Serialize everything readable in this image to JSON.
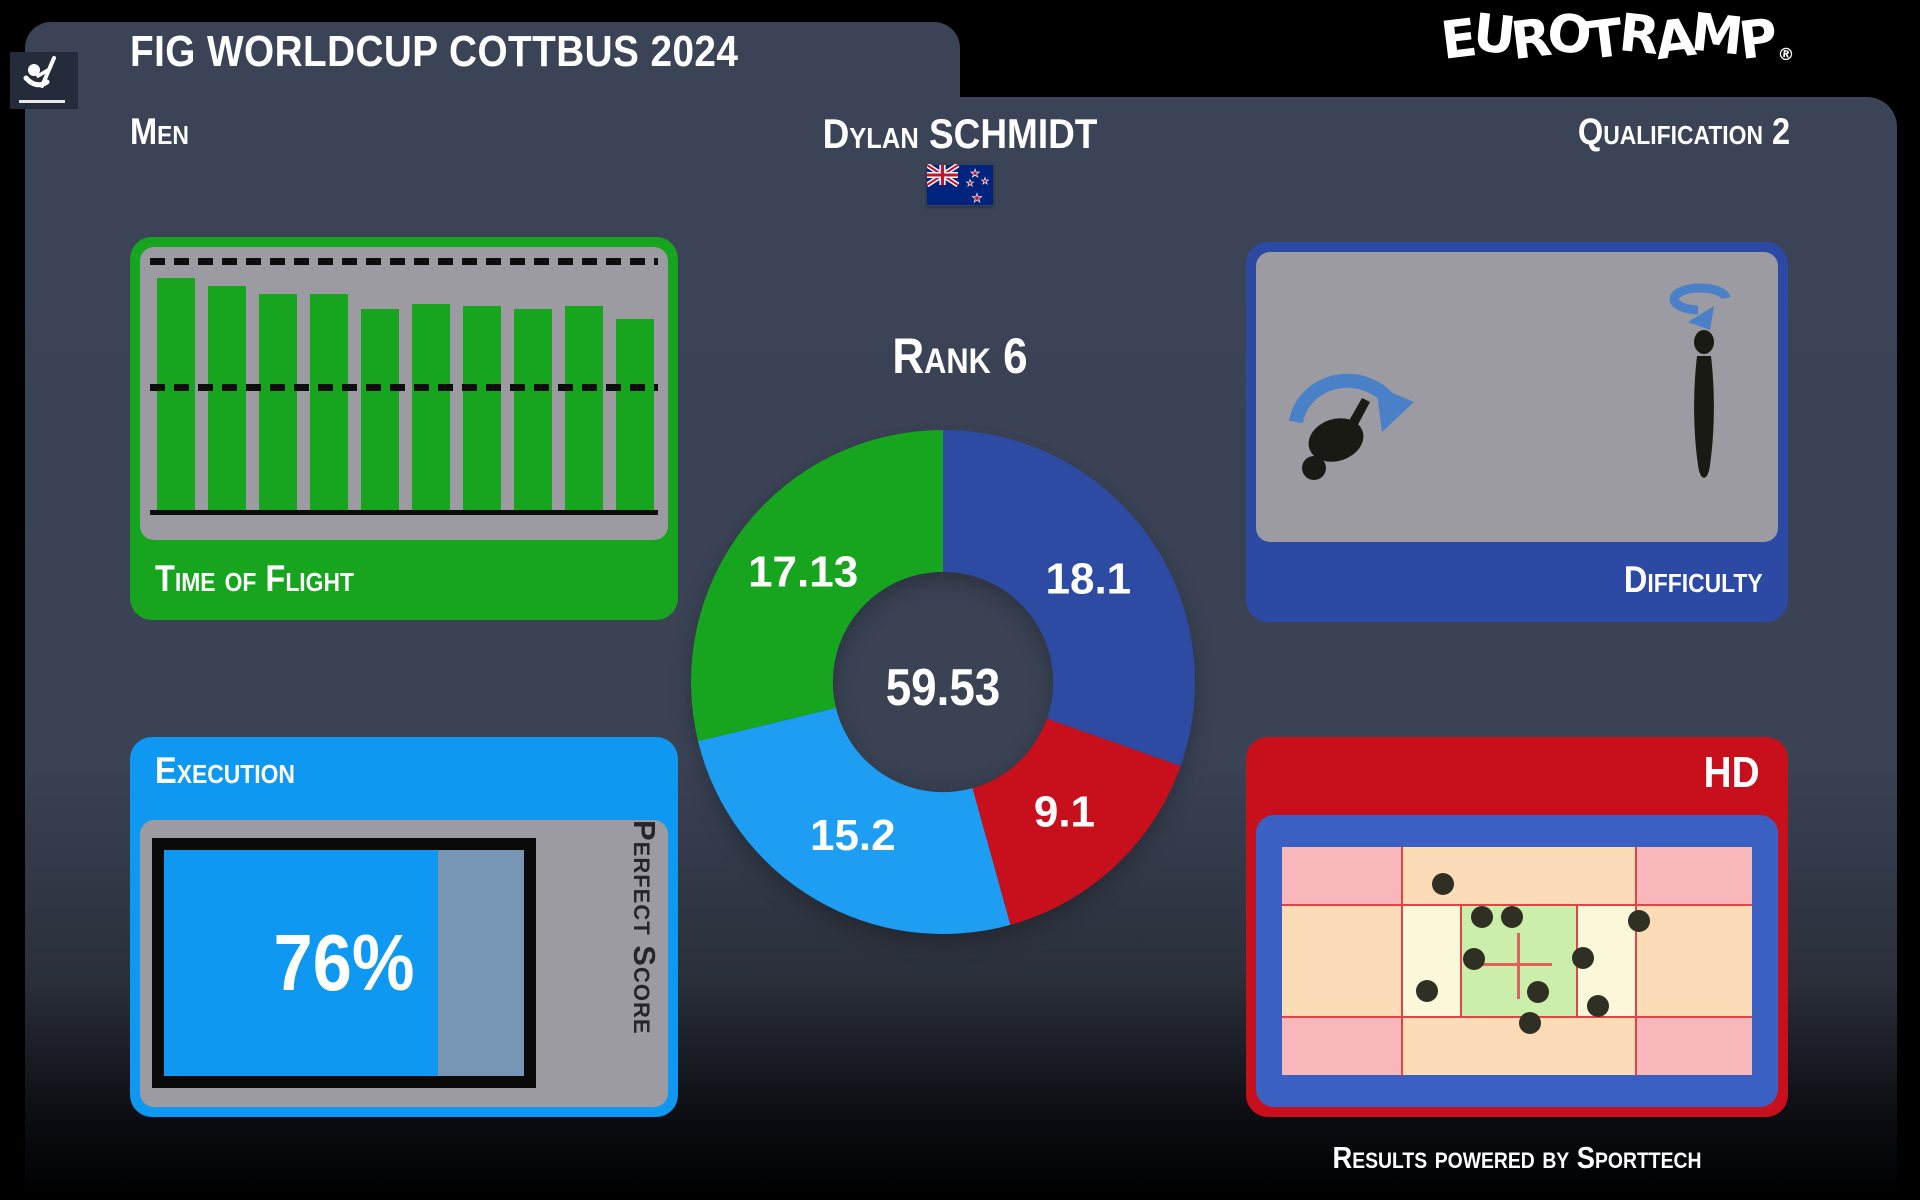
{
  "header": {
    "event_title": "FIG WORLDCUP COTTBUS 2024",
    "brand": "EUROTRAMP",
    "brand_reg": "®",
    "category": "Men",
    "athlete": "Dylan SCHMIDT",
    "athlete_nation": "new-zealand-flag",
    "round": "Qualification 2"
  },
  "rank_label": "Rank 6",
  "chart_data": [
    {
      "type": "pie",
      "title": "Rank 6",
      "center_label": "59.53",
      "direction": "clockwise",
      "start_angle_deg": 0,
      "inner_radius_ratio": 0.437,
      "legend_position": "none",
      "segments": [
        {
          "name": "difficulty",
          "label": "18.1",
          "value": 18.1,
          "color": "#2e4ba3"
        },
        {
          "name": "horizontal-displacement",
          "label": "9.1",
          "value": 9.1,
          "color": "#c80f1c"
        },
        {
          "name": "execution",
          "label": "15.2",
          "value": 15.2,
          "color": "#1d9ef3"
        },
        {
          "name": "time-of-flight",
          "label": "17.13",
          "value": 17.13,
          "color": "#17a41f"
        }
      ]
    },
    {
      "type": "bar",
      "title": "Time of Flight",
      "values_pct_of_max": [
        92,
        89,
        86,
        86,
        80,
        82,
        81,
        80,
        81,
        76
      ],
      "bar_color": "#17a41f",
      "guides": [
        "max-dashed-top",
        "50pct-dashed-mid",
        "baseline-solid"
      ],
      "grid": false
    },
    {
      "type": "scatter",
      "title": "HD landing positions",
      "dot_color": "#2f2f23",
      "points_frac": [
        [
          0.342,
          0.162
        ],
        [
          0.426,
          0.309
        ],
        [
          0.49,
          0.309
        ],
        [
          0.759,
          0.324
        ],
        [
          0.409,
          0.493
        ],
        [
          0.641,
          0.488
        ],
        [
          0.309,
          0.632
        ],
        [
          0.545,
          0.635
        ],
        [
          0.673,
          0.699
        ],
        [
          0.527,
          0.772
        ]
      ]
    }
  ],
  "panels": {
    "time_of_flight": {
      "title": "Time of Flight"
    },
    "execution": {
      "title": "Execution",
      "percent": 76,
      "percent_display": "76%",
      "axis_label": "Perfect Score"
    },
    "difficulty": {
      "title": "Difficulty",
      "icons": [
        "somersault-arc-icon",
        "twist-rotation-icon"
      ]
    },
    "hd": {
      "title": "HD"
    }
  },
  "footer": {
    "credit": "Results powered by Sporttech"
  },
  "colors": {
    "panel_bg": "#3a4254",
    "green": "#17a41f",
    "dark_blue": "#2e4ba3",
    "light_blue": "#0f98f1",
    "red": "#c80f1c",
    "inner_gray": "#9b9ba1",
    "remainder_blue_gray": "#7795b5",
    "bed_pink": "#f8b7bb",
    "bed_peach": "#fbdcb6",
    "bed_cream": "#faf8d8",
    "bed_green": "#cbeeab"
  }
}
